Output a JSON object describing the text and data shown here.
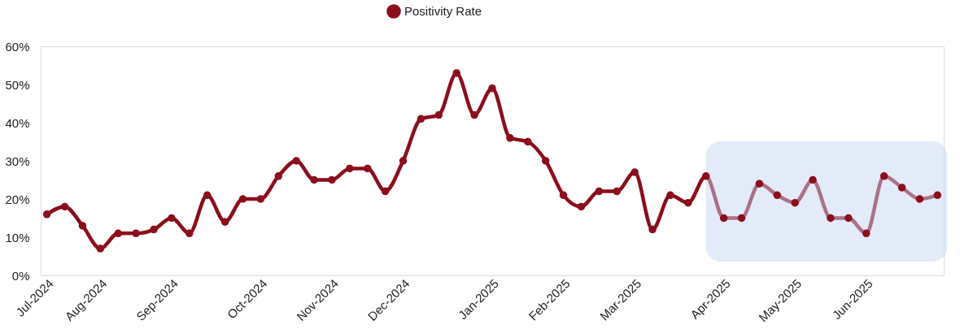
{
  "chart_data": {
    "type": "line",
    "categories": [
      "Jul-2024",
      null,
      null,
      "Aug-2024",
      null,
      null,
      null,
      "Sep-2024",
      null,
      null,
      null,
      null,
      "Oct-2024",
      null,
      null,
      null,
      "Nov-2024",
      null,
      null,
      null,
      "Dec-2024",
      null,
      null,
      null,
      null,
      "Jan-2025",
      null,
      null,
      null,
      "Feb-2025",
      null,
      null,
      null,
      "Mar-2025",
      null,
      null,
      null,
      null,
      "Apr-2025",
      null,
      null,
      null,
      "May-2025",
      null,
      null,
      null,
      "Jun-2025",
      null,
      null,
      null,
      null
    ],
    "series": [
      {
        "name": "Positivity Rate",
        "color": "#8b0e1d",
        "values": [
          16,
          18,
          13,
          7,
          11,
          11,
          12,
          15,
          11,
          21,
          14,
          20,
          20,
          26,
          30,
          25,
          25,
          28,
          28,
          22,
          30,
          41,
          42,
          53,
          42,
          49,
          36,
          35,
          30,
          21,
          18,
          22,
          22,
          27,
          12,
          21,
          19,
          26,
          15,
          15,
          24,
          21,
          19,
          25,
          15,
          15,
          11,
          26,
          23,
          20,
          21
        ]
      }
    ],
    "ylim": [
      0,
      60
    ],
    "yticks": [
      {
        "value": 0,
        "label": "0%"
      },
      {
        "value": 10,
        "label": "10%"
      },
      {
        "value": 20,
        "label": "20%"
      },
      {
        "value": 30,
        "label": "30%"
      },
      {
        "value": 40,
        "label": "40%"
      },
      {
        "value": 50,
        "label": "50%"
      },
      {
        "value": 60,
        "label": "60%"
      }
    ],
    "grid": false,
    "legend": "top",
    "marker": "circle",
    "line_style": "solid"
  }
}
